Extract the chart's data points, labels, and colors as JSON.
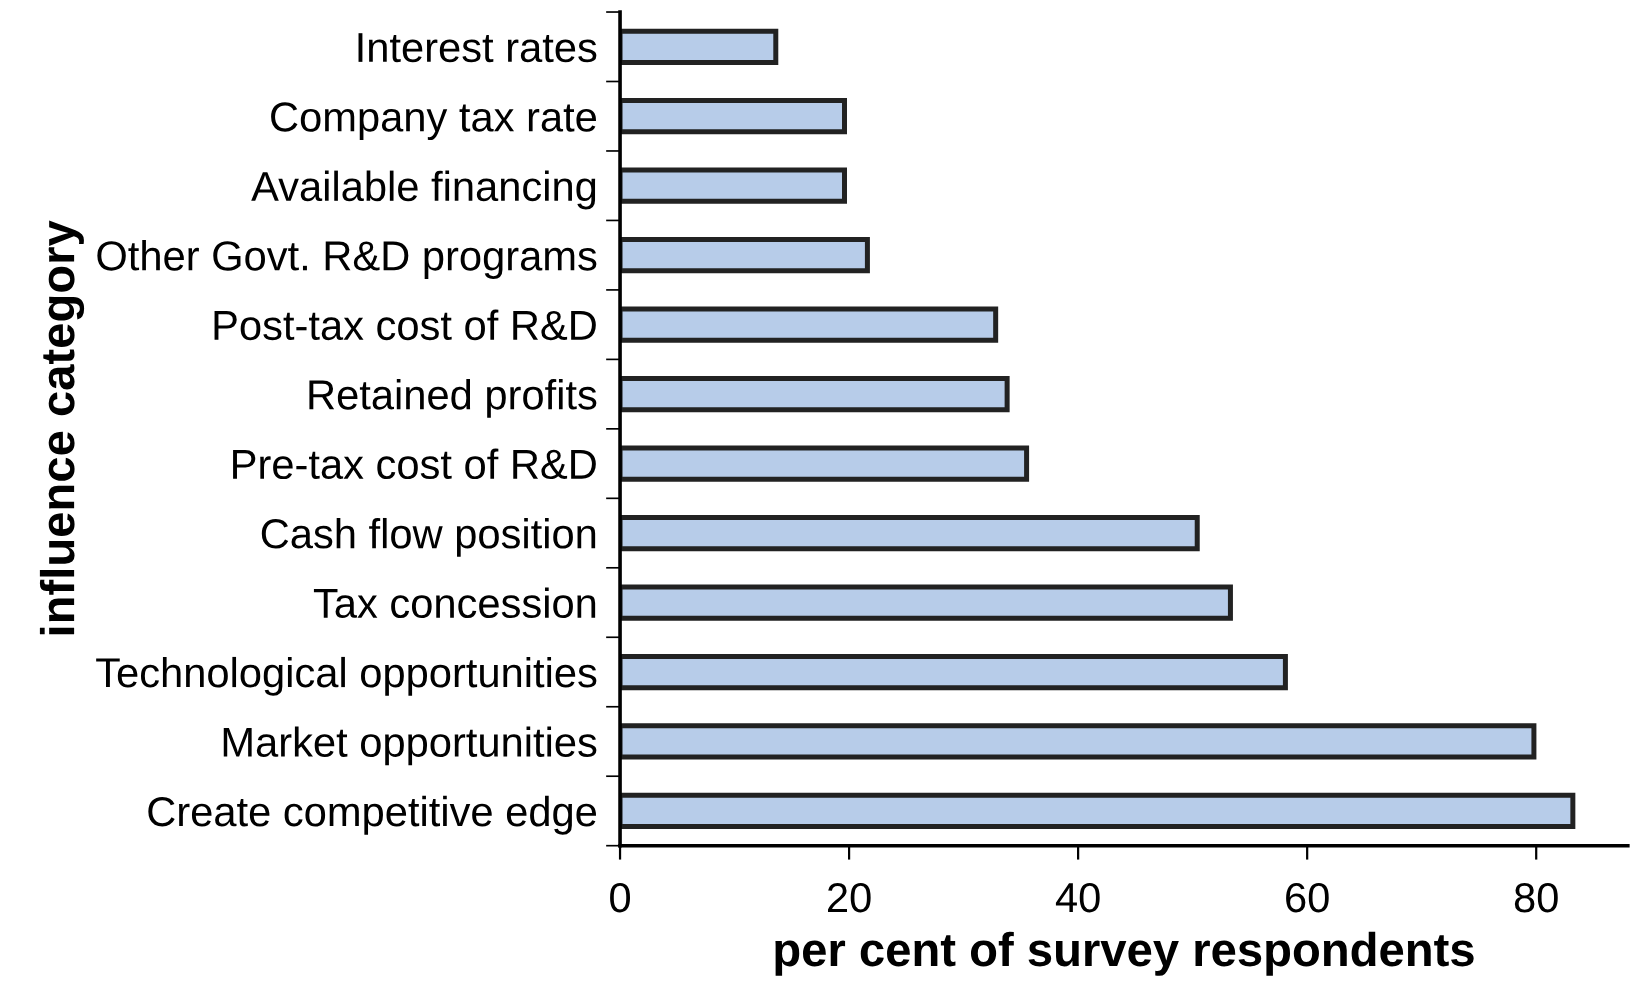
{
  "chart_data": {
    "type": "bar",
    "orientation": "horizontal",
    "categories": [
      "Interest rates",
      "Company tax rate",
      "Available financing",
      "Other Govt. R&D programs",
      "Post-tax cost of R&D",
      "Retained profits",
      "Pre-tax cost of R&D",
      "Cash flow position",
      "Tax concession",
      "Technological opportunities",
      "Market opportunities",
      "Create competitive edge"
    ],
    "values": [
      13.6,
      19.6,
      19.6,
      21.6,
      32.8,
      33.8,
      35.5,
      50.4,
      53.3,
      58.1,
      79.8,
      83.2
    ],
    "color": "#b7cce9",
    "xlabel": "per cent of survey respondents",
    "ylabel": "influence category",
    "xlim": [
      0,
      88
    ],
    "xticks": [
      0,
      20,
      40,
      60,
      80
    ],
    "grid": false,
    "legend": false
  }
}
